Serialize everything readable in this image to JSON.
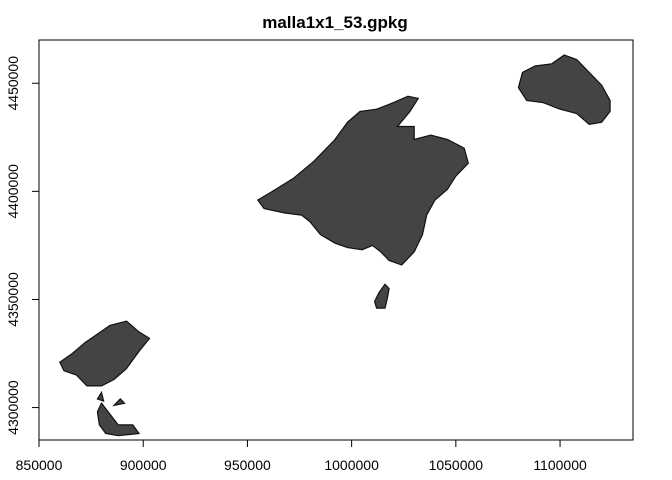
{
  "chart_data": {
    "type": "map",
    "title": "malla1x1_53.gpkg",
    "xlabel": "",
    "ylabel": "",
    "xlim": [
      850000,
      1135000
    ],
    "ylim": [
      4285000,
      4470000
    ],
    "x_ticks": [
      850000,
      900000,
      950000,
      1000000,
      1050000,
      1100000
    ],
    "x_tick_labels": [
      "850000",
      "900000",
      "950000",
      "1000000",
      "1050000",
      "1100000"
    ],
    "y_ticks": [
      4300000,
      4350000,
      4400000,
      4450000
    ],
    "y_tick_labels": [
      "4300000",
      "4350000",
      "4400000",
      "4450000"
    ],
    "fill_color": "#444444",
    "grid": false,
    "features": [
      {
        "id": "mallorca",
        "polygon": [
          [
            955000,
            4396000
          ],
          [
            962000,
            4400000
          ],
          [
            972000,
            4406000
          ],
          [
            982000,
            4414000
          ],
          [
            992000,
            4424000
          ],
          [
            998000,
            4432000
          ],
          [
            1004000,
            4437000
          ],
          [
            1012000,
            4438000
          ],
          [
            1020000,
            4441000
          ],
          [
            1027000,
            4444000
          ],
          [
            1032000,
            4443000
          ],
          [
            1028000,
            4437000
          ],
          [
            1022000,
            4430000
          ],
          [
            1030000,
            4430000
          ],
          [
            1030000,
            4424000
          ],
          [
            1038000,
            4426000
          ],
          [
            1046000,
            4424000
          ],
          [
            1054000,
            4420000
          ],
          [
            1056000,
            4413000
          ],
          [
            1050000,
            4407000
          ],
          [
            1046000,
            4401000
          ],
          [
            1040000,
            4396000
          ],
          [
            1036000,
            4389000
          ],
          [
            1034000,
            4380000
          ],
          [
            1030000,
            4372000
          ],
          [
            1024000,
            4366000
          ],
          [
            1018000,
            4368000
          ],
          [
            1014000,
            4372000
          ],
          [
            1010000,
            4375000
          ],
          [
            1005000,
            4373000
          ],
          [
            998000,
            4374000
          ],
          [
            992000,
            4376000
          ],
          [
            985000,
            4380000
          ],
          [
            980000,
            4386000
          ],
          [
            976000,
            4389000
          ],
          [
            968000,
            4390000
          ],
          [
            958000,
            4392000
          ]
        ]
      },
      {
        "id": "cabrera",
        "polygon": [
          [
            1011000,
            4349000
          ],
          [
            1013000,
            4353000
          ],
          [
            1016000,
            4357000
          ],
          [
            1018000,
            4355000
          ],
          [
            1017000,
            4350000
          ],
          [
            1016000,
            4346000
          ],
          [
            1012000,
            4346000
          ]
        ]
      },
      {
        "id": "menorca",
        "polygon": [
          [
            1080000,
            4448000
          ],
          [
            1082000,
            4455000
          ],
          [
            1088000,
            4458000
          ],
          [
            1096000,
            4459000
          ],
          [
            1102000,
            4463000
          ],
          [
            1108000,
            4461000
          ],
          [
            1114000,
            4455000
          ],
          [
            1120000,
            4449000
          ],
          [
            1124000,
            4442000
          ],
          [
            1124000,
            4437000
          ],
          [
            1120000,
            4432000
          ],
          [
            1114000,
            4431000
          ],
          [
            1108000,
            4436000
          ],
          [
            1100000,
            4438000
          ],
          [
            1092000,
            4441000
          ],
          [
            1084000,
            4442000
          ]
        ]
      },
      {
        "id": "ibiza",
        "polygon": [
          [
            860000,
            4321000
          ],
          [
            866000,
            4325000
          ],
          [
            872000,
            4330000
          ],
          [
            878000,
            4334000
          ],
          [
            884000,
            4338000
          ],
          [
            892000,
            4340000
          ],
          [
            898000,
            4335000
          ],
          [
            903000,
            4332000
          ],
          [
            898000,
            4326000
          ],
          [
            892000,
            4318000
          ],
          [
            886000,
            4313000
          ],
          [
            880000,
            4310000
          ],
          [
            873000,
            4310000
          ],
          [
            868000,
            4315000
          ],
          [
            862000,
            4317000
          ]
        ]
      },
      {
        "id": "formentera",
        "polygon": [
          [
            878000,
            4298000
          ],
          [
            880000,
            4302000
          ],
          [
            884000,
            4297000
          ],
          [
            888000,
            4292000
          ],
          [
            895000,
            4292000
          ],
          [
            898000,
            4288000
          ],
          [
            888000,
            4287000
          ],
          [
            882000,
            4288000
          ],
          [
            879000,
            4292000
          ]
        ]
      },
      {
        "id": "islet-a",
        "polygon": [
          [
            878000,
            4304000
          ],
          [
            880000,
            4307000
          ],
          [
            881000,
            4303000
          ]
        ]
      },
      {
        "id": "islet-b",
        "polygon": [
          [
            886000,
            4301000
          ],
          [
            889000,
            4304000
          ],
          [
            891000,
            4302000
          ]
        ]
      }
    ]
  }
}
